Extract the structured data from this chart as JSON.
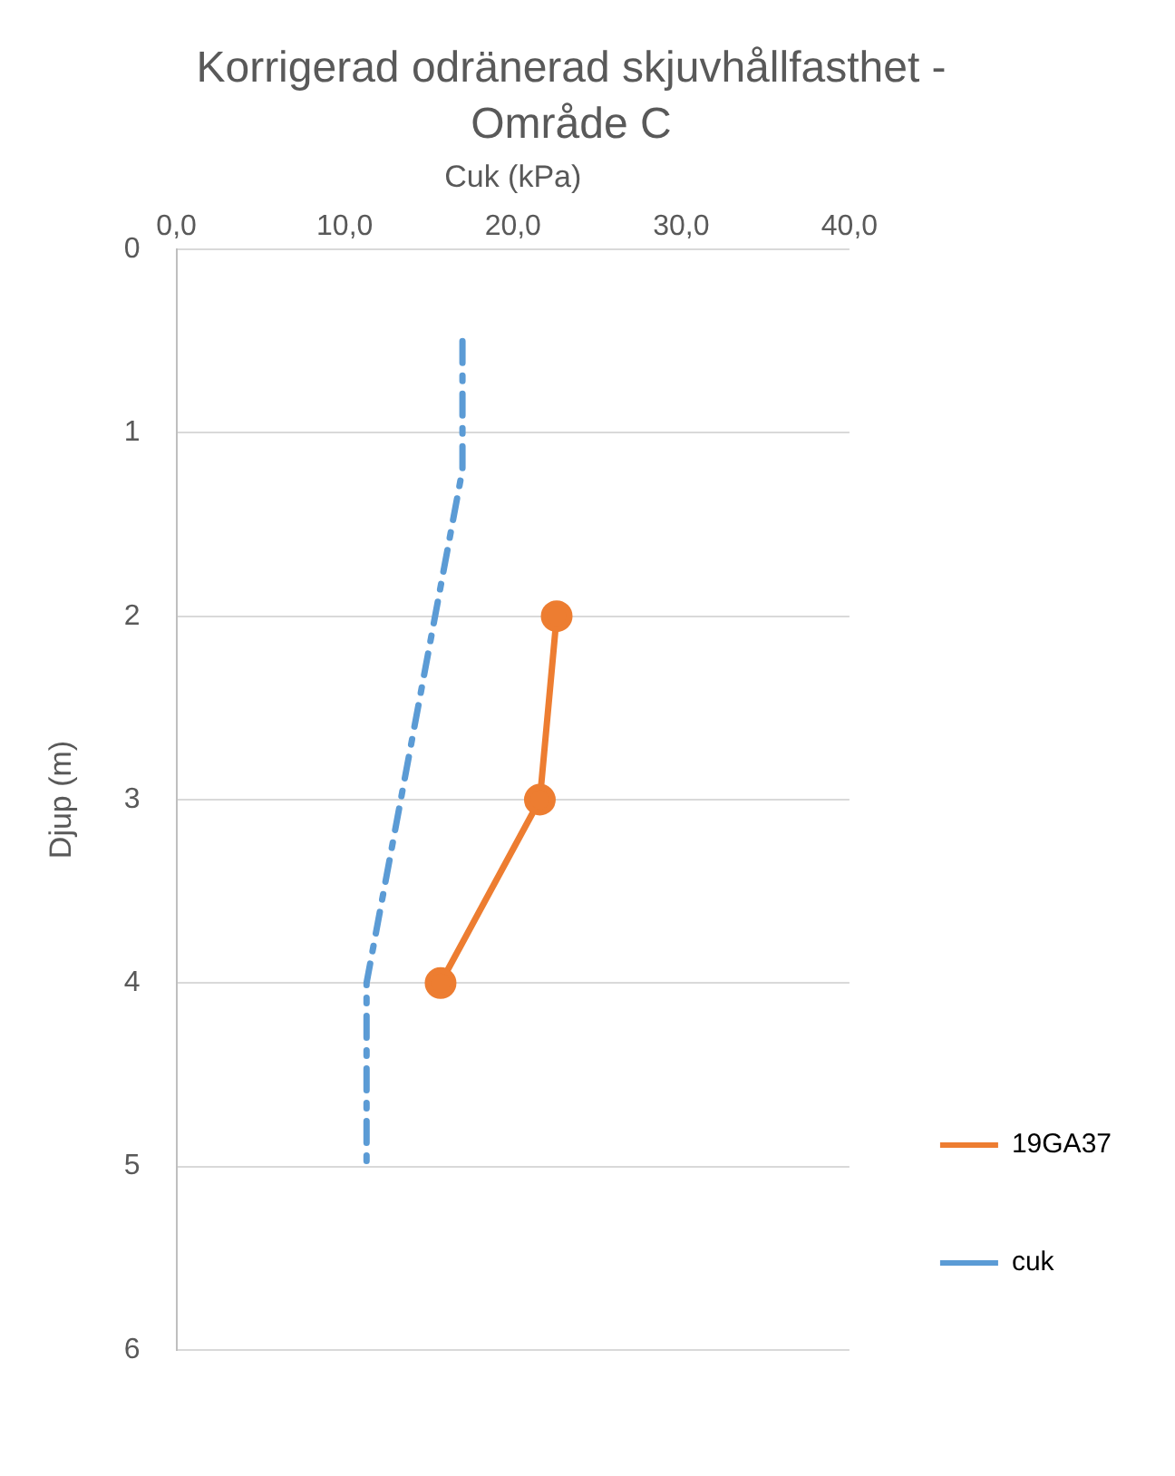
{
  "chart_data": {
    "type": "line",
    "title": "Korrigerad odränerad skjuvhållfasthet - Område C",
    "xlabel": "Cuk (kPa)",
    "ylabel": "Djup (m)",
    "xlim": [
      0,
      40
    ],
    "xticks": [
      {
        "value": 0,
        "label": "0,0"
      },
      {
        "value": 10,
        "label": "10,0"
      },
      {
        "value": 20,
        "label": "20,0"
      },
      {
        "value": 30,
        "label": "30,0"
      },
      {
        "value": 40,
        "label": "40,0"
      }
    ],
    "ylim": [
      6,
      0
    ],
    "yticks": [
      0,
      1,
      2,
      3,
      4,
      5,
      6
    ],
    "grid": "y",
    "legend": "right",
    "series": [
      {
        "name": "19GA37",
        "color": "#ed7d31",
        "marker": "circle",
        "line_style": "solid",
        "x": [
          22.6,
          21.6,
          15.7
        ],
        "values": [
          2,
          3,
          4
        ]
      },
      {
        "name": "cuk",
        "color": "#5b9bd5",
        "marker": "none",
        "line_style": "dashed",
        "x": [
          17.0,
          17.0,
          11.3,
          11.3
        ],
        "values": [
          0.5,
          1.2,
          4.0,
          5.0
        ]
      }
    ]
  }
}
